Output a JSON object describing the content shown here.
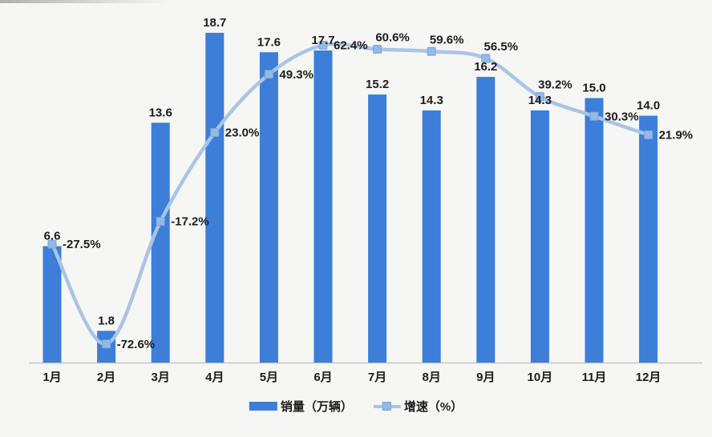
{
  "chart_data": {
    "type": "bar",
    "title": "",
    "categories": [
      "1月",
      "2月",
      "3月",
      "4月",
      "5月",
      "6月",
      "7月",
      "8月",
      "9月",
      "10月",
      "11月",
      "12月"
    ],
    "series": [
      {
        "name": "销量（万辆）",
        "type": "bar",
        "values": [
          6.6,
          1.8,
          13.6,
          18.7,
          17.6,
          17.7,
          15.2,
          14.3,
          16.2,
          14.3,
          15.0,
          14.0
        ],
        "color": "#3c7ed8"
      },
      {
        "name": "增速（%）",
        "type": "line",
        "values": [
          -27.5,
          -72.6,
          -17.2,
          23.0,
          49.3,
          62.4,
          60.6,
          59.6,
          56.5,
          39.2,
          30.3,
          21.9
        ],
        "label_suffix": "%",
        "color": "#a9c4e6",
        "marker": "square",
        "marker_color": "#93b9e6",
        "marker_border_color": "#7ea6d6",
        "label_positions": [
          "right",
          "right",
          "right",
          "right",
          "right",
          "right",
          "above",
          "above",
          "above",
          "above",
          "right",
          "right"
        ],
        "smooth": true
      }
    ],
    "legend": [
      "销量（万辆）",
      "增速（%）"
    ],
    "legend_position": "bottom",
    "grid": false,
    "axes": {
      "x_visible": true,
      "y_visible": false,
      "bar_ylim": [
        0,
        19.2
      ],
      "line_ylim": [
        -81,
        72
      ]
    },
    "colors": {
      "label": "#1c1c1c",
      "axis_line": "#c6c6c4",
      "background": "#f6f6f4"
    }
  }
}
